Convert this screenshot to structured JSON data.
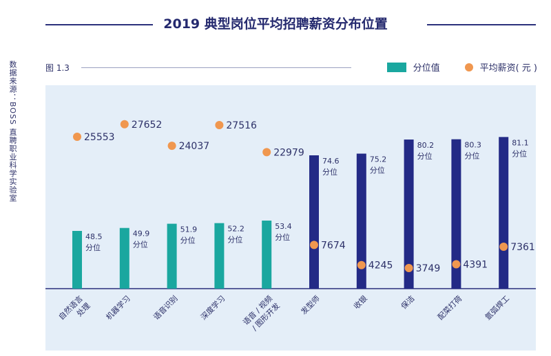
{
  "header": {
    "title": "2019 典型岗位平均招聘薪资分布位置",
    "figure_label": "图 1.3",
    "source_note": "数据来源：BOSS 直聘职业科学实验室"
  },
  "colors": {
    "teal_bar": "#1aa79f",
    "navy_bar": "#232a86",
    "dot": "#f0974f",
    "text": "#2c3068"
  },
  "chart_data": {
    "type": "bar",
    "title": "2019 典型岗位平均招聘薪资分布位置",
    "legend_position": "top-right",
    "categories": [
      "自然语言处理",
      "机器学习",
      "语音识别",
      "深度学习",
      "语音 / 视频 / 图形开发",
      "发型师",
      "收银",
      "保洁",
      "配菜打荷",
      "氩弧焊工"
    ],
    "category_labels": [
      [
        "自然语言",
        "处理"
      ],
      [
        "机器学习"
      ],
      [
        "语音识别"
      ],
      [
        "深度学习"
      ],
      [
        "语音 / 视频",
        "/ 图形开发"
      ],
      [
        "发型师"
      ],
      [
        "收银"
      ],
      [
        "保洁"
      ],
      [
        "配菜打荷"
      ],
      [
        "氩弧焊工"
      ]
    ],
    "series": [
      {
        "name": "分位值",
        "values": [
          48.5,
          49.9,
          51.9,
          52.2,
          53.4,
          74.6,
          75.2,
          80.2,
          80.3,
          81.1
        ],
        "labels": [
          "48.5",
          "49.9",
          "51.9",
          "52.2",
          "53.4",
          "74.6",
          "75.2",
          "80.2",
          "80.3",
          "81.1"
        ],
        "unit_label": "分位",
        "colors": [
          "#1aa79f",
          "#1aa79f",
          "#1aa79f",
          "#1aa79f",
          "#1aa79f",
          "#232a86",
          "#232a86",
          "#232a86",
          "#232a86",
          "#232a86"
        ]
      },
      {
        "name": "平均薪资( 元 )",
        "values": [
          25553,
          27652,
          24037,
          27516,
          22979,
          7674,
          4245,
          3749,
          4391,
          7361
        ],
        "labels": [
          "25553",
          "27652",
          "24037",
          "27516",
          "22979",
          "7674",
          "4245",
          "3749",
          "4391",
          "7361"
        ]
      }
    ]
  },
  "legend": {
    "bar_label": "分位值",
    "dot_label": "平均薪资( 元 )"
  }
}
